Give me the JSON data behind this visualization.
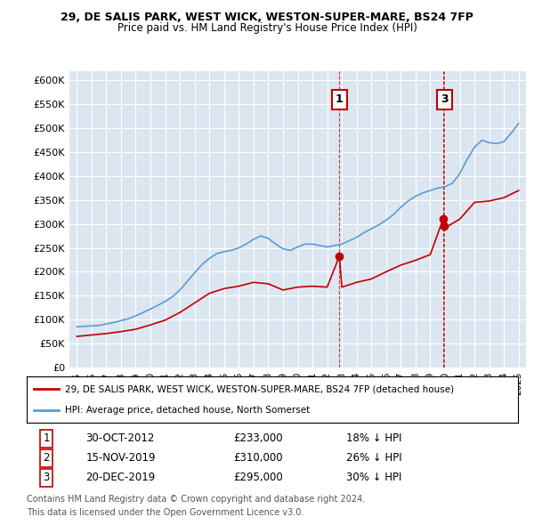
{
  "title_line1": "29, DE SALIS PARK, WEST WICK, WESTON-SUPER-MARE, BS24 7FP",
  "title_line2": "Price paid vs. HM Land Registry's House Price Index (HPI)",
  "ylabel_ticks": [
    "£0",
    "£50K",
    "£100K",
    "£150K",
    "£200K",
    "£250K",
    "£300K",
    "£350K",
    "£400K",
    "£450K",
    "£500K",
    "£550K",
    "£600K"
  ],
  "ytick_values": [
    0,
    50000,
    100000,
    150000,
    200000,
    250000,
    300000,
    350000,
    400000,
    450000,
    500000,
    550000,
    600000
  ],
  "ylim": [
    0,
    620000
  ],
  "hpi_color": "#5b9bd5",
  "price_color": "#c00000",
  "plot_bg": "#dce6f1",
  "transaction1_date": "30-OCT-2012",
  "transaction1_price": 233000,
  "transaction1_pct": "18%",
  "transaction2_date": "15-NOV-2019",
  "transaction2_price": 310000,
  "transaction2_pct": "26%",
  "transaction3_date": "20-DEC-2019",
  "transaction3_price": 295000,
  "transaction3_pct": "30%",
  "legend_line1": "29, DE SALIS PARK, WEST WICK, WESTON-SUPER-MARE, BS24 7FP (detached house)",
  "legend_line2": "HPI: Average price, detached house, North Somerset",
  "footnote1": "Contains HM Land Registry data © Crown copyright and database right 2024.",
  "footnote2": "This data is licensed under the Open Government Licence v3.0.",
  "marker1_x": 2012.83,
  "marker2_x": 2019.87,
  "marker3_x": 2019.96,
  "hpi_x": [
    1995,
    1995.5,
    1996,
    1996.5,
    1997,
    1997.5,
    1998,
    1998.5,
    1999,
    1999.5,
    2000,
    2000.5,
    2001,
    2001.5,
    2002,
    2002.5,
    2003,
    2003.5,
    2004,
    2004.5,
    2005,
    2005.5,
    2006,
    2006.5,
    2007,
    2007.5,
    2008,
    2008.5,
    2009,
    2009.5,
    2010,
    2010.5,
    2011,
    2011.5,
    2012,
    2012.5,
    2013,
    2013.5,
    2014,
    2014.5,
    2015,
    2015.5,
    2016,
    2016.5,
    2017,
    2017.5,
    2018,
    2018.5,
    2019,
    2019.5,
    2020,
    2020.5,
    2021,
    2021.5,
    2022,
    2022.5,
    2023,
    2023.5,
    2024,
    2024.5,
    2025
  ],
  "hpi_y": [
    85000,
    86000,
    87000,
    88000,
    91000,
    94000,
    98000,
    102000,
    108000,
    115000,
    122000,
    130000,
    138000,
    148000,
    162000,
    180000,
    198000,
    215000,
    228000,
    238000,
    242000,
    245000,
    250000,
    258000,
    268000,
    275000,
    270000,
    258000,
    248000,
    245000,
    252000,
    258000,
    258000,
    255000,
    252000,
    255000,
    258000,
    265000,
    272000,
    282000,
    290000,
    298000,
    308000,
    320000,
    335000,
    348000,
    358000,
    365000,
    370000,
    375000,
    378000,
    385000,
    405000,
    435000,
    460000,
    475000,
    470000,
    468000,
    472000,
    490000,
    510000
  ],
  "price_x": [
    1995,
    1996,
    1997,
    1998,
    1999,
    2000,
    2001,
    2002,
    2003,
    2004,
    2005,
    2006,
    2007,
    2008,
    2009,
    2010,
    2011,
    2012,
    2012.83,
    2013,
    2014,
    2015,
    2016,
    2017,
    2018,
    2019,
    2019.87,
    2019.96,
    2020,
    2021,
    2022,
    2023,
    2024,
    2025
  ],
  "price_y": [
    65000,
    68000,
    71000,
    75000,
    80000,
    89000,
    99000,
    115000,
    135000,
    155000,
    165000,
    170000,
    178000,
    175000,
    162000,
    168000,
    170000,
    168000,
    233000,
    168000,
    178000,
    185000,
    200000,
    214000,
    224000,
    236000,
    310000,
    295000,
    292000,
    310000,
    345000,
    348000,
    355000,
    370000
  ]
}
